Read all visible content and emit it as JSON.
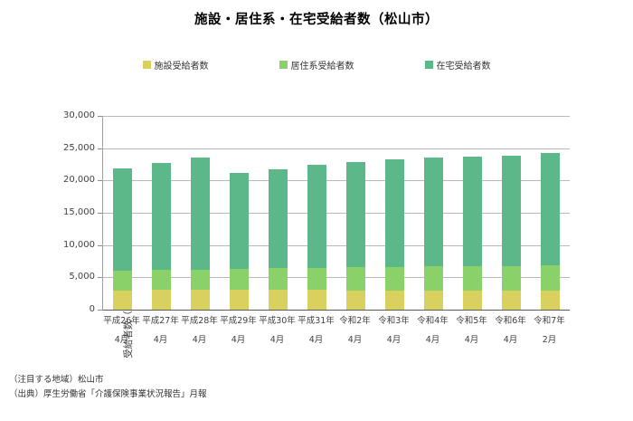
{
  "chart_data": {
    "type": "bar",
    "stacked": true,
    "title": "施設・居住系・在宅受給者数（松山市）",
    "ylabel": "受給者数（人）",
    "ylim": [
      0,
      30000
    ],
    "ytick_interval": 5000,
    "ytick_labels": [
      "0",
      "5,000",
      "10,000",
      "15,000",
      "20,000",
      "25,000",
      "30,000"
    ],
    "grid": true,
    "legend_position": "top",
    "categories": [
      {
        "year": "平成26年",
        "month": "4月"
      },
      {
        "year": "平成27年",
        "month": "4月"
      },
      {
        "year": "平成28年",
        "month": "4月"
      },
      {
        "year": "平成29年",
        "month": "4月"
      },
      {
        "year": "平成30年",
        "month": "4月"
      },
      {
        "year": "平成31年",
        "month": "4月"
      },
      {
        "year": "令和2年",
        "month": "4月"
      },
      {
        "year": "令和3年",
        "month": "4月"
      },
      {
        "year": "令和4年",
        "month": "4月"
      },
      {
        "year": "令和5年",
        "month": "4月"
      },
      {
        "year": "令和6年",
        "month": "4月"
      },
      {
        "year": "令和7年",
        "month": "2月"
      }
    ],
    "series": [
      {
        "name": "施設受給者数",
        "color": "#d8d05f",
        "values": [
          3000,
          3050,
          3050,
          3100,
          3050,
          3050,
          3000,
          3000,
          2950,
          2950,
          2950,
          2950
        ]
      },
      {
        "name": "居住系受給者数",
        "color": "#8bd169",
        "values": [
          3000,
          3100,
          3150,
          3250,
          3400,
          3450,
          3550,
          3650,
          3750,
          3800,
          3850,
          3900
        ]
      },
      {
        "name": "在宅受給者数",
        "color": "#5cb888",
        "values": [
          15850,
          16500,
          17400,
          14850,
          15300,
          16000,
          16350,
          16650,
          16800,
          16900,
          17100,
          17400
        ]
      }
    ]
  },
  "footnotes": [
    "（注目する地域）松山市",
    "（出典）厚生労働省「介護保険事業状況報告」月報"
  ]
}
